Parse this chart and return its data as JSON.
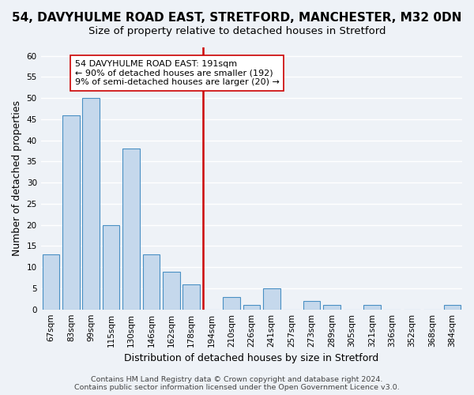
{
  "title": "54, DAVYHULME ROAD EAST, STRETFORD, MANCHESTER, M32 0DN",
  "subtitle": "Size of property relative to detached houses in Stretford",
  "xlabel": "Distribution of detached houses by size in Stretford",
  "ylabel": "Number of detached properties",
  "bar_labels": [
    "67sqm",
    "83sqm",
    "99sqm",
    "115sqm",
    "130sqm",
    "146sqm",
    "162sqm",
    "178sqm",
    "194sqm",
    "210sqm",
    "226sqm",
    "241sqm",
    "257sqm",
    "273sqm",
    "289sqm",
    "305sqm",
    "321sqm",
    "336sqm",
    "352sqm",
    "368sqm",
    "384sqm"
  ],
  "bar_values": [
    13,
    46,
    50,
    20,
    38,
    13,
    9,
    6,
    0,
    3,
    1,
    5,
    0,
    2,
    1,
    0,
    1,
    0,
    0,
    0,
    1
  ],
  "bar_color": "#c5d8ec",
  "bar_edge_color": "#4a90c4",
  "vline_index": 8,
  "vline_color": "#cc0000",
  "annotation_title": "54 DAVYHULME ROAD EAST: 191sqm",
  "annotation_line1": "← 90% of detached houses are smaller (192)",
  "annotation_line2": "9% of semi-detached houses are larger (20) →",
  "annotation_box_color": "#ffffff",
  "annotation_box_edge": "#cc0000",
  "ylim": [
    0,
    62
  ],
  "yticks": [
    0,
    5,
    10,
    15,
    20,
    25,
    30,
    35,
    40,
    45,
    50,
    55,
    60
  ],
  "footer1": "Contains HM Land Registry data © Crown copyright and database right 2024.",
  "footer2": "Contains public sector information licensed under the Open Government Licence v3.0.",
  "bg_color": "#eef2f7",
  "grid_color": "#ffffff",
  "title_fontsize": 11,
  "subtitle_fontsize": 9.5,
  "axis_label_fontsize": 9,
  "tick_fontsize": 7.5,
  "footer_fontsize": 6.8
}
